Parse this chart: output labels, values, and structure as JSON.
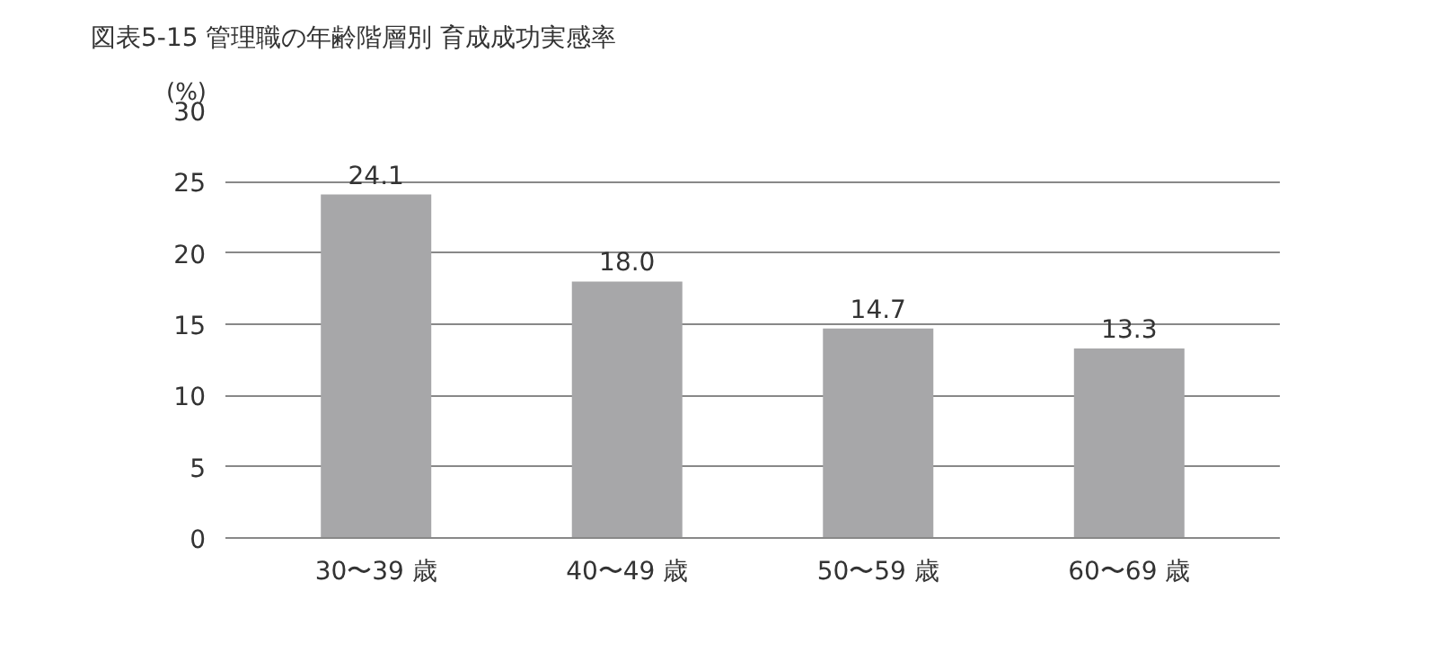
{
  "chart_data": {
    "type": "bar",
    "title": "図表5-15 管理職の年齢階層別 育成成功実感率",
    "ylabel": "(%)",
    "categories": [
      "30〜39 歳",
      "40〜49 歳",
      "50〜59 歳",
      "60〜69 歳"
    ],
    "values": [
      24.1,
      18.0,
      14.7,
      13.3
    ],
    "color": "#a7a7a9",
    "ylim": [
      0,
      30
    ],
    "yticks": [
      0,
      5,
      10,
      15,
      20,
      25,
      30
    ],
    "grid": "y",
    "value_labels": [
      "24.1",
      "18.0",
      "14.7",
      "13.3"
    ]
  }
}
